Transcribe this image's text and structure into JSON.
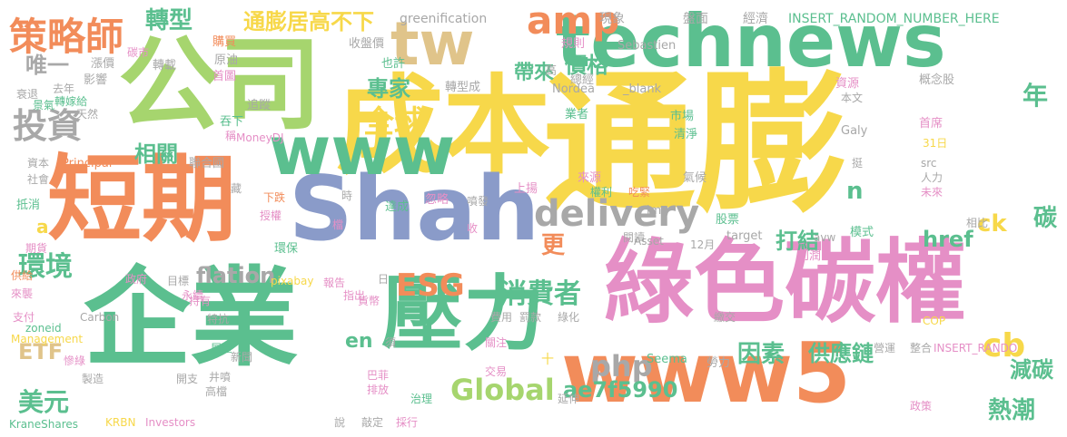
{
  "palette": {
    "green": "#5bbf8f",
    "orange": "#f28c5a",
    "blue": "#8a9bc9",
    "pink": "#e58fc6",
    "lime": "#a6d56e",
    "yellow": "#f7d84a",
    "tan": "#e0c48a",
    "gray": "#a8a8a8"
  },
  "words": [
    {
      "text": "成本",
      "color": "yellow"
    },
    {
      "text": "通膨",
      "color": "yellow"
    },
    {
      "text": "公司",
      "color": "lime"
    },
    {
      "text": "technews",
      "color": "green"
    },
    {
      "text": "短期",
      "color": "orange"
    },
    {
      "text": "Shah",
      "color": "blue"
    },
    {
      "text": "綠色碳權",
      "color": "pink"
    },
    {
      "text": "企業",
      "color": "green"
    },
    {
      "text": "壓力",
      "color": "green"
    },
    {
      "text": "www5",
      "color": "orange"
    },
    {
      "text": "www",
      "color": "green"
    },
    {
      "text": "tw",
      "color": "tan"
    },
    {
      "text": "策略師",
      "color": "orange"
    },
    {
      "text": "amp",
      "color": "orange"
    },
    {
      "text": "delivery",
      "color": "gray"
    },
    {
      "text": "投資",
      "color": "gray"
    },
    {
      "text": "環境",
      "color": "green"
    },
    {
      "text": "ESG",
      "color": "orange"
    },
    {
      "text": "消費者",
      "color": "green"
    },
    {
      "text": "php",
      "color": "gray"
    },
    {
      "text": "Global",
      "color": "lime"
    },
    {
      "text": "cb",
      "color": "yellow"
    },
    {
      "text": "美元",
      "color": "green"
    },
    {
      "text": "ETF",
      "color": "tan"
    },
    {
      "text": "全球",
      "color": "yellow"
    },
    {
      "text": "轉型",
      "color": "green"
    },
    {
      "text": "通膨居高不下",
      "color": "yellow"
    },
    {
      "text": "唯一",
      "color": "gray"
    },
    {
      "text": "專家",
      "color": "green"
    },
    {
      "text": "價格",
      "color": "green"
    },
    {
      "text": "帶來",
      "color": "green"
    },
    {
      "text": "相關",
      "color": "green"
    },
    {
      "text": "flation",
      "color": "gray"
    },
    {
      "text": "打結",
      "color": "green"
    },
    {
      "text": "更",
      "color": "orange"
    },
    {
      "text": "ck",
      "color": "yellow"
    },
    {
      "text": "href",
      "color": "green"
    },
    {
      "text": "碳",
      "color": "green"
    },
    {
      "text": "年",
      "color": "green"
    },
    {
      "text": "n",
      "color": "green"
    },
    {
      "text": "因素",
      "color": "green"
    },
    {
      "text": "供應鏈",
      "color": "green"
    },
    {
      "text": "減碳",
      "color": "green"
    },
    {
      "text": "熱潮",
      "color": "green"
    },
    {
      "text": "ae7f5990",
      "color": "green"
    },
    {
      "text": "en",
      "color": "green"
    },
    {
      "text": "a",
      "color": "yellow"
    },
    {
      "text": "greenification",
      "color": "gray"
    },
    {
      "text": "現象",
      "color": "gray"
    },
    {
      "text": "盤面",
      "color": "gray"
    },
    {
      "text": "經濟",
      "color": "gray"
    },
    {
      "text": "INSERT_RANDOM_NUMBER_HERE",
      "color": "green"
    },
    {
      "text": "收盤價",
      "color": "gray"
    },
    {
      "text": "規則",
      "color": "pink"
    },
    {
      "text": "Sebastien",
      "color": "gray"
    },
    {
      "text": "購買",
      "color": "orange"
    },
    {
      "text": "碳市",
      "color": "pink"
    },
    {
      "text": "漲價",
      "color": "gray"
    },
    {
      "text": "轉載",
      "color": "gray"
    },
    {
      "text": "原油",
      "color": "gray"
    },
    {
      "text": "首圖",
      "color": "pink"
    },
    {
      "text": "也許",
      "color": "green"
    },
    {
      "text": "總經",
      "color": "gray"
    },
    {
      "text": "影響",
      "color": "gray"
    },
    {
      "text": "衰退",
      "color": "gray"
    },
    {
      "text": "去年",
      "color": "gray"
    },
    {
      "text": "轉嫁給",
      "color": "green"
    },
    {
      "text": "景氣",
      "color": "green"
    },
    {
      "text": "天然",
      "color": "gray"
    },
    {
      "text": "轉型成",
      "color": "gray"
    },
    {
      "text": "Nordea",
      "color": "gray"
    },
    {
      "text": "_blank",
      "color": "gray"
    },
    {
      "text": "資源",
      "color": "pink"
    },
    {
      "text": "概念股",
      "color": "gray"
    },
    {
      "text": "本文",
      "color": "gray"
    },
    {
      "text": "追蹤",
      "color": "gray"
    },
    {
      "text": "業者",
      "color": "green"
    },
    {
      "text": "市場",
      "color": "green"
    },
    {
      "text": "清淨",
      "color": "green"
    },
    {
      "text": "吞下",
      "color": "green"
    },
    {
      "text": "稱",
      "color": "pink"
    },
    {
      "text": "MoneyDJ",
      "color": "pink"
    },
    {
      "text": "Galy",
      "color": "gray"
    },
    {
      "text": "首席",
      "color": "pink"
    },
    {
      "text": "31日",
      "color": "yellow"
    },
    {
      "text": "資本",
      "color": "gray"
    },
    {
      "text": "Principal",
      "color": "orange"
    },
    {
      "text": "聯合國",
      "color": "gray"
    },
    {
      "text": "社會",
      "color": "gray"
    },
    {
      "text": "來源",
      "color": "pink"
    },
    {
      "text": "權利",
      "color": "green"
    },
    {
      "text": "氣候",
      "color": "gray"
    },
    {
      "text": "挺",
      "color": "gray"
    },
    {
      "text": "src",
      "color": "gray"
    },
    {
      "text": "人力",
      "color": "gray"
    },
    {
      "text": "未來",
      "color": "pink"
    },
    {
      "text": "抵消",
      "color": "green"
    },
    {
      "text": "藏",
      "color": "gray"
    },
    {
      "text": "時",
      "color": "gray"
    },
    {
      "text": "達成",
      "color": "green"
    },
    {
      "text": "忽略",
      "color": "pink"
    },
    {
      "text": "噴發",
      "color": "gray"
    },
    {
      "text": "上揚",
      "color": "pink"
    },
    {
      "text": "吃緊",
      "color": "orange"
    },
    {
      "text": "img",
      "color": "gray"
    },
    {
      "text": "下跌",
      "color": "orange"
    },
    {
      "text": "授權",
      "color": "pink"
    },
    {
      "text": "檔",
      "color": "pink"
    },
    {
      "text": "收",
      "color": "pink"
    },
    {
      "text": "閱讀",
      "color": "gray"
    },
    {
      "text": "Asset",
      "color": "gray"
    },
    {
      "text": "12月",
      "color": "gray"
    },
    {
      "text": "股票",
      "color": "green"
    },
    {
      "text": "target",
      "color": "gray"
    },
    {
      "text": "avw",
      "color": "gray"
    },
    {
      "text": "模式",
      "color": "green"
    },
    {
      "text": "相比",
      "color": "gray"
    },
    {
      "text": "期貨",
      "color": "pink"
    },
    {
      "text": "環保",
      "color": "green"
    },
    {
      "text": "利潤",
      "color": "pink"
    },
    {
      "text": "供給",
      "color": "orange"
    },
    {
      "text": "政府",
      "color": "pink"
    },
    {
      "text": "目標",
      "color": "gray"
    },
    {
      "text": "pixabay",
      "color": "yellow"
    },
    {
      "text": "日",
      "color": "gray"
    },
    {
      "text": "來襲",
      "color": "pink"
    },
    {
      "text": "永續",
      "color": "pink"
    },
    {
      "text": "持有",
      "color": "pink"
    },
    {
      "text": "報告",
      "color": "pink"
    },
    {
      "text": "指出",
      "color": "pink"
    },
    {
      "text": "貨幣",
      "color": "pink"
    },
    {
      "text": "支付",
      "color": "pink"
    },
    {
      "text": "Carbon",
      "color": "gray"
    },
    {
      "text": "zoneid",
      "color": "green"
    },
    {
      "text": "特抗",
      "color": "gray"
    },
    {
      "text": "費用",
      "color": "gray"
    },
    {
      "text": "罰款",
      "color": "gray"
    },
    {
      "text": "綠化",
      "color": "gray"
    },
    {
      "text": "繳交",
      "color": "gray"
    },
    {
      "text": "COP",
      "color": "yellow"
    },
    {
      "text": "Management",
      "color": "yellow"
    },
    {
      "text": "展望",
      "color": "green"
    },
    {
      "text": "須",
      "color": "gray"
    },
    {
      "text": "關注",
      "color": "pink"
    },
    {
      "text": "營運",
      "color": "gray"
    },
    {
      "text": "整合",
      "color": "gray"
    },
    {
      "text": "INSERT_RANDO",
      "color": "pink"
    },
    {
      "text": "新聞",
      "color": "gray"
    },
    {
      "text": "慘綠",
      "color": "pink"
    },
    {
      "text": "巴菲",
      "color": "pink"
    },
    {
      "text": "交易",
      "color": "pink"
    },
    {
      "text": "Seema",
      "color": "green"
    },
    {
      "text": "勞力",
      "color": "gray"
    },
    {
      "text": "開支",
      "color": "gray"
    },
    {
      "text": "製造",
      "color": "gray"
    },
    {
      "text": "井噴",
      "color": "gray"
    },
    {
      "text": "高檔",
      "color": "gray"
    },
    {
      "text": "排放",
      "color": "pink"
    },
    {
      "text": "治理",
      "color": "green"
    },
    {
      "text": "延伸",
      "color": "gray"
    },
    {
      "text": "政策",
      "color": "pink"
    },
    {
      "text": "KraneShares",
      "color": "green"
    },
    {
      "text": "KRBN",
      "color": "yellow"
    },
    {
      "text": "Investors",
      "color": "pink"
    },
    {
      "text": "說",
      "color": "gray"
    },
    {
      "text": "敲定",
      "color": "gray"
    },
    {
      "text": "採行",
      "color": "pink"
    },
    {
      "text": "高",
      "color": "gray"
    },
    {
      "text": "十",
      "color": "yellow"
    }
  ]
}
